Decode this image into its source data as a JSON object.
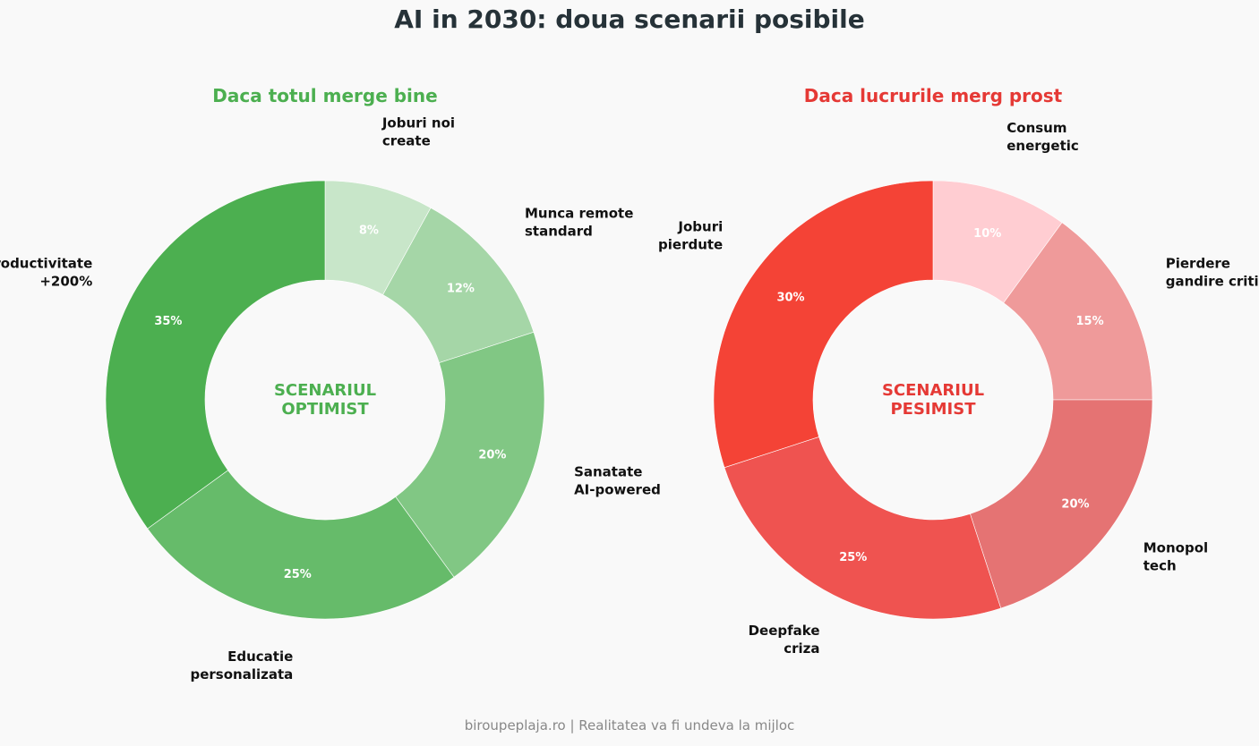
{
  "title": "AI in 2030: doua scenarii posibile",
  "footer": "biroupeplaja.ro | Realitatea va fi undeva la mijloc",
  "chart_data": [
    {
      "type": "pie",
      "title": "Daca totul merge bine",
      "title_color": "#4caf50",
      "center_label": [
        "SCENARIUL",
        "OPTIMIST"
      ],
      "center_color": "#4caf50",
      "categories": [
        [
          "Joburi noi",
          "create"
        ],
        [
          "Munca remote",
          "standard"
        ],
        [
          "Sanatate",
          "AI-powered"
        ],
        [
          "Educatie",
          "personalizata"
        ],
        [
          "Productivitate",
          "+200%"
        ]
      ],
      "values": [
        8,
        12,
        20,
        25,
        35
      ],
      "value_labels": [
        "8%",
        "12%",
        "20%",
        "25%",
        "35%"
      ],
      "colors": [
        "#c8e6c9",
        "#a5d6a7",
        "#81c784",
        "#66bb6a",
        "#4caf50"
      ]
    },
    {
      "type": "pie",
      "title": "Daca lucrurile merg prost",
      "title_color": "#e53935",
      "center_label": [
        "SCENARIUL",
        "PESIMIST"
      ],
      "center_color": "#e53935",
      "categories": [
        [
          "Consum",
          "energetic"
        ],
        [
          "Pierdere",
          "gandire critica"
        ],
        [
          "Monopol",
          "tech"
        ],
        [
          "Deepfake",
          "criza"
        ],
        [
          "Joburi",
          "pierdute"
        ]
      ],
      "values": [
        10,
        15,
        20,
        25,
        30
      ],
      "value_labels": [
        "10%",
        "15%",
        "20%",
        "25%",
        "30%"
      ],
      "colors": [
        "#ffcdd2",
        "#ef9a9a",
        "#e57373",
        "#ef5350",
        "#f44336"
      ]
    }
  ]
}
